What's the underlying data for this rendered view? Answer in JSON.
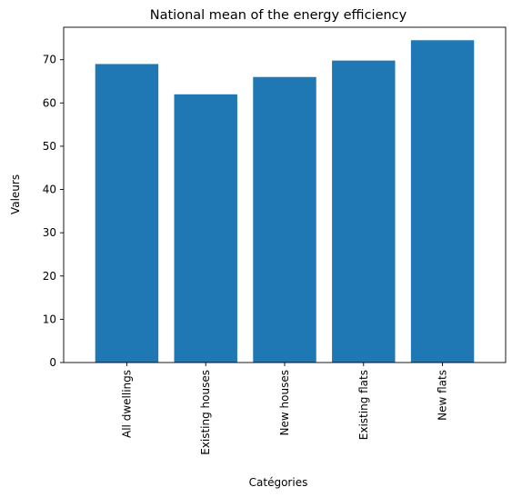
{
  "chart_data": {
    "type": "bar",
    "title": "National mean of the energy efficiency",
    "xlabel": "Catégories",
    "ylabel": "Valeurs",
    "categories": [
      "All dwellings",
      "Existing houses",
      "New houses",
      "Existing flats",
      "New flats"
    ],
    "values": [
      69,
      62,
      66,
      69.8,
      74.5
    ],
    "ylim": [
      0,
      77.5
    ],
    "yticks": [
      0,
      10,
      20,
      30,
      40,
      50,
      60,
      70
    ],
    "bar_color": "#1f77b4",
    "grid": false,
    "legend": "none"
  }
}
